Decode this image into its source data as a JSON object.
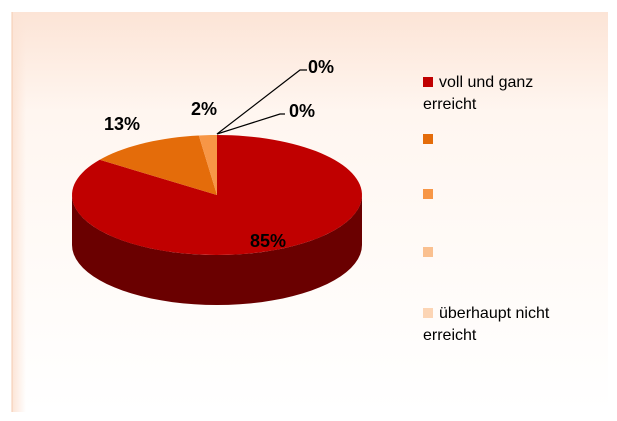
{
  "chart_data": {
    "type": "pie",
    "categories": [
      "voll und ganz erreicht",
      null,
      null,
      null,
      "überhaupt nicht erreicht"
    ],
    "values": [
      85,
      13,
      2,
      0,
      0
    ],
    "value_labels": [
      "85%",
      "13%",
      "2%",
      "0%",
      "0%"
    ],
    "colors": [
      "#c00000",
      "#e46c0a",
      "#f79646",
      "#fac090",
      "#fcd5b5"
    ],
    "legend": "right"
  }
}
